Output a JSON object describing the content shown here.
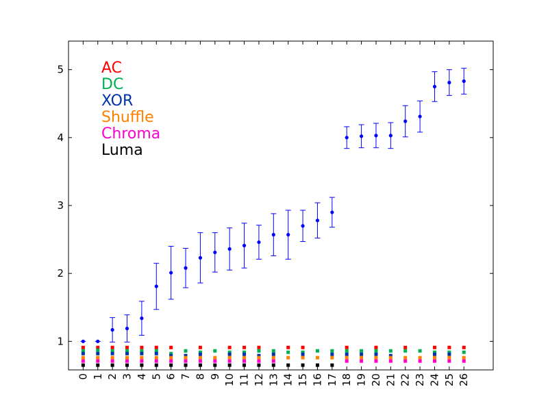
{
  "chart_data": {
    "type": "scatter",
    "title": "",
    "xlabel": "",
    "ylabel": "",
    "xlim": [
      -1,
      28
    ],
    "ylim": [
      0.58,
      5.42
    ],
    "grid": false,
    "x_ticks": [
      "0",
      "1",
      "2",
      "3",
      "4",
      "5",
      "6",
      "7",
      "8",
      "9",
      "10",
      "11",
      "12",
      "13",
      "14",
      "15",
      "16",
      "17",
      "18",
      "19",
      "20",
      "21",
      "22",
      "23",
      "24",
      "25",
      "26"
    ],
    "y_ticks": [
      1,
      2,
      3,
      4,
      5
    ],
    "error_series": {
      "color": "#0000ff",
      "x": [
        0,
        1,
        2,
        3,
        4,
        5,
        6,
        7,
        8,
        9,
        10,
        11,
        12,
        13,
        14,
        15,
        16,
        17,
        18,
        19,
        20,
        21,
        22,
        23,
        24,
        25,
        26
      ],
      "y": [
        1.0,
        1.0,
        1.17,
        1.19,
        1.34,
        1.81,
        2.01,
        2.08,
        2.23,
        2.31,
        2.36,
        2.41,
        2.46,
        2.57,
        2.57,
        2.7,
        2.78,
        2.9,
        4.0,
        4.02,
        4.03,
        4.03,
        4.24,
        4.31,
        4.75,
        4.81,
        4.83
      ],
      "err": [
        0.0,
        0.0,
        0.18,
        0.2,
        0.25,
        0.34,
        0.39,
        0.29,
        0.37,
        0.29,
        0.31,
        0.33,
        0.25,
        0.31,
        0.36,
        0.23,
        0.26,
        0.22,
        0.16,
        0.17,
        0.18,
        0.19,
        0.23,
        0.23,
        0.22,
        0.19,
        0.19
      ]
    },
    "legend_placement": "upper-left",
    "legend": [
      {
        "name": "AC",
        "color": "#ff0000"
      },
      {
        "name": "DC",
        "color": "#00b050"
      },
      {
        "name": "XOR",
        "color": "#0033aa"
      },
      {
        "name": "Shuffle",
        "color": "#ff7f00"
      },
      {
        "name": "Chroma",
        "color": "#ff00cc"
      },
      {
        "name": "Luma",
        "color": "#000000"
      }
    ],
    "marker_series": [
      {
        "name": "AC",
        "color": "#ff0000",
        "x": [
          0,
          1,
          2,
          3,
          4,
          5,
          6,
          8,
          10,
          11,
          12,
          14,
          15,
          18,
          20,
          22,
          24,
          25,
          26
        ],
        "y": [
          0.91,
          0.91,
          0.91,
          0.91,
          0.91,
          0.91,
          0.91,
          0.91,
          0.91,
          0.91,
          0.91,
          0.91,
          0.91,
          0.91,
          0.91,
          0.91,
          0.91,
          0.91,
          0.91
        ]
      },
      {
        "name": "DC",
        "color": "#00b050",
        "x": [
          0,
          1,
          2,
          3,
          4,
          5,
          6,
          7,
          8,
          9,
          10,
          11,
          12,
          13,
          14,
          15,
          16,
          17,
          18,
          19,
          20,
          21,
          22,
          23,
          24,
          25,
          26
        ],
        "y": [
          0.86,
          0.87,
          0.86,
          0.86,
          0.86,
          0.86,
          0.82,
          0.86,
          0.84,
          0.86,
          0.84,
          0.84,
          0.86,
          0.86,
          0.84,
          0.84,
          0.86,
          0.86,
          0.86,
          0.86,
          0.86,
          0.86,
          0.86,
          0.86,
          0.84,
          0.84,
          0.84
        ]
      },
      {
        "name": "XOR",
        "color": "#0033aa",
        "x": [
          0,
          1,
          2,
          3,
          4,
          5,
          6,
          7,
          8,
          10,
          11,
          12,
          13,
          15,
          17,
          18,
          19,
          20,
          21,
          24,
          25
        ],
        "y": [
          0.82,
          0.82,
          0.82,
          0.82,
          0.82,
          0.82,
          0.79,
          0.79,
          0.81,
          0.81,
          0.81,
          0.79,
          0.81,
          0.81,
          0.81,
          0.81,
          0.81,
          0.81,
          0.79,
          0.81,
          0.81
        ]
      },
      {
        "name": "Shuffle",
        "color": "#ff7f00",
        "x": [
          0,
          1,
          2,
          3,
          4,
          5,
          6,
          7,
          8,
          9,
          10,
          11,
          12,
          13,
          14,
          15,
          16,
          17,
          18,
          19,
          20,
          21,
          22,
          23,
          24,
          25,
          26
        ],
        "y": [
          0.76,
          0.76,
          0.76,
          0.76,
          0.76,
          0.76,
          0.76,
          0.76,
          0.76,
          0.76,
          0.76,
          0.76,
          0.76,
          0.76,
          0.76,
          0.76,
          0.76,
          0.76,
          0.76,
          0.76,
          0.76,
          0.76,
          0.76,
          0.76,
          0.76,
          0.76,
          0.76
        ]
      },
      {
        "name": "Chroma",
        "color": "#ff00cc",
        "x": [
          0,
          1,
          2,
          3,
          4,
          5,
          6,
          7,
          8,
          9,
          10,
          11,
          12,
          13,
          18,
          19,
          20,
          21,
          22,
          23,
          24,
          25,
          26
        ],
        "y": [
          0.71,
          0.71,
          0.71,
          0.71,
          0.71,
          0.71,
          0.71,
          0.71,
          0.71,
          0.71,
          0.71,
          0.71,
          0.71,
          0.71,
          0.71,
          0.71,
          0.71,
          0.71,
          0.71,
          0.71,
          0.71,
          0.71,
          0.71
        ]
      },
      {
        "name": "Luma",
        "color": "#000000",
        "x": [
          0,
          1,
          2,
          3,
          4,
          5,
          6,
          7,
          8,
          9,
          10,
          11,
          12,
          13,
          14,
          15,
          16,
          17
        ],
        "y": [
          0.65,
          0.65,
          0.65,
          0.65,
          0.65,
          0.65,
          0.65,
          0.65,
          0.65,
          0.65,
          0.65,
          0.65,
          0.65,
          0.65,
          0.65,
          0.65,
          0.65,
          0.65
        ]
      }
    ]
  }
}
